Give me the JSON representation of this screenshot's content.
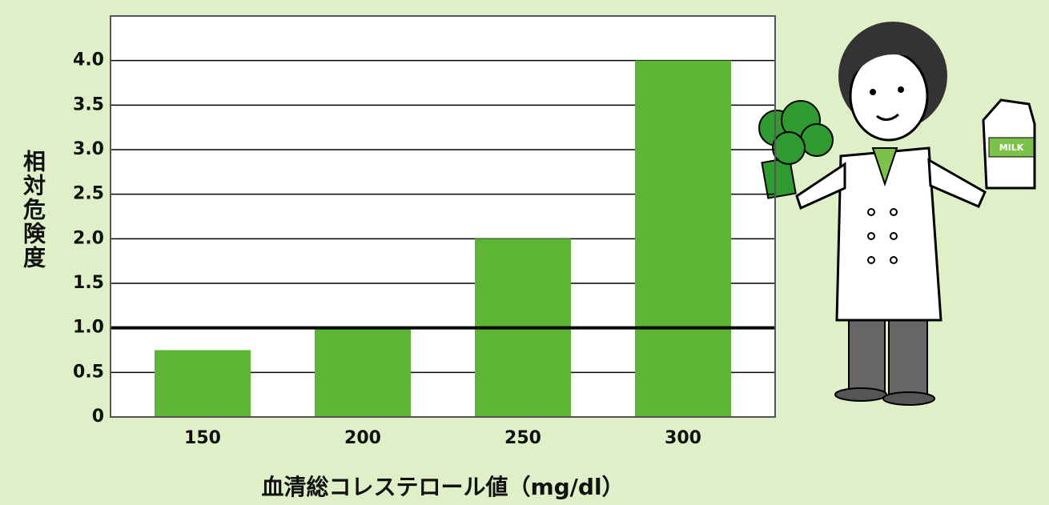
{
  "chart_data": {
    "type": "bar",
    "y_label": "相対危険度",
    "x_label": "血清総コレステロール値（mg/dl）",
    "categories": [
      "150",
      "200",
      "250",
      "300"
    ],
    "values": [
      0.75,
      1.0,
      2.0,
      4.0
    ],
    "color": "#5db535",
    "ylim": [
      0,
      4.5
    ],
    "yticks": [
      0,
      0.5,
      {
        "value": 1,
        "label": "1.0"
      },
      1.5,
      {
        "value": 2,
        "label": "2.0"
      },
      2.5,
      {
        "value": 3,
        "label": "3.0"
      },
      3.5,
      {
        "value": 4,
        "label": "4.0"
      }
    ],
    "grid": true,
    "reference_line": 1
  },
  "illustration": {
    "carton_label": "MILK"
  }
}
